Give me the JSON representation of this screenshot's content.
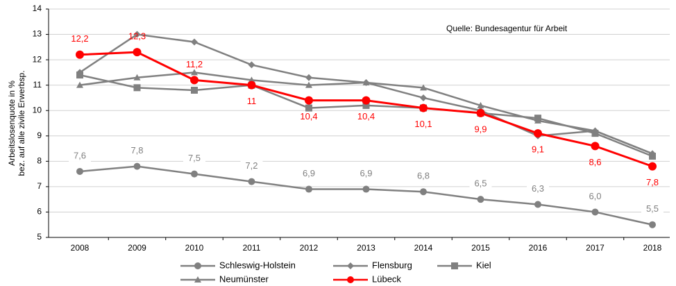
{
  "chart_data": {
    "type": "line",
    "ylabel": [
      "Arbeitslosenquote in %",
      "bez. auf alle zivile Erwerbsp."
    ],
    "annotation": "Quelle: Bundesagentur für Arbeit",
    "categories": [
      "2008",
      "2009",
      "2010",
      "2011",
      "2012",
      "2013",
      "2014",
      "2015",
      "2016",
      "2017",
      "2018"
    ],
    "ylim": [
      5,
      14
    ],
    "yticks": [
      5,
      6,
      7,
      8,
      9,
      10,
      11,
      12,
      13,
      14
    ],
    "grid": true,
    "series": [
      {
        "name": "Schleswig-Holstein",
        "color": "#808080",
        "marker": "circle",
        "values": [
          7.6,
          7.8,
          7.5,
          7.2,
          6.9,
          6.9,
          6.8,
          6.5,
          6.3,
          6.0,
          5.5
        ],
        "value_labels": [
          "7,6",
          "7,8",
          "7,5",
          "7,2",
          "6,9",
          "6,9",
          "6,8",
          "6,5",
          "6,3",
          "6,0",
          "5,5"
        ]
      },
      {
        "name": "Flensburg",
        "color": "#808080",
        "marker": "diamond",
        "values": [
          11.5,
          13.0,
          12.7,
          11.8,
          11.3,
          11.1,
          10.5,
          10.0,
          9.0,
          9.2,
          8.3
        ]
      },
      {
        "name": "Kiel",
        "color": "#808080",
        "marker": "square",
        "values": [
          11.4,
          10.9,
          10.8,
          11.0,
          10.1,
          10.2,
          10.1,
          9.9,
          9.7,
          9.1,
          8.2
        ]
      },
      {
        "name": "Neumünster",
        "color": "#808080",
        "marker": "triangle",
        "values": [
          11.0,
          11.3,
          11.5,
          11.2,
          11.0,
          11.1,
          10.9,
          10.2,
          9.6,
          9.2,
          8.3
        ]
      },
      {
        "name": "Lübeck",
        "color": "#ff0000",
        "marker": "circle",
        "values": [
          12.2,
          12.3,
          11.2,
          11.0,
          10.4,
          10.4,
          10.1,
          9.9,
          9.1,
          8.6,
          7.8
        ],
        "value_labels": [
          "12,2",
          "12,3",
          "11,2",
          "11",
          "10,4",
          "10,4",
          "10,1",
          "9,9",
          "9,1",
          "8,6",
          "7,8"
        ]
      }
    ]
  }
}
